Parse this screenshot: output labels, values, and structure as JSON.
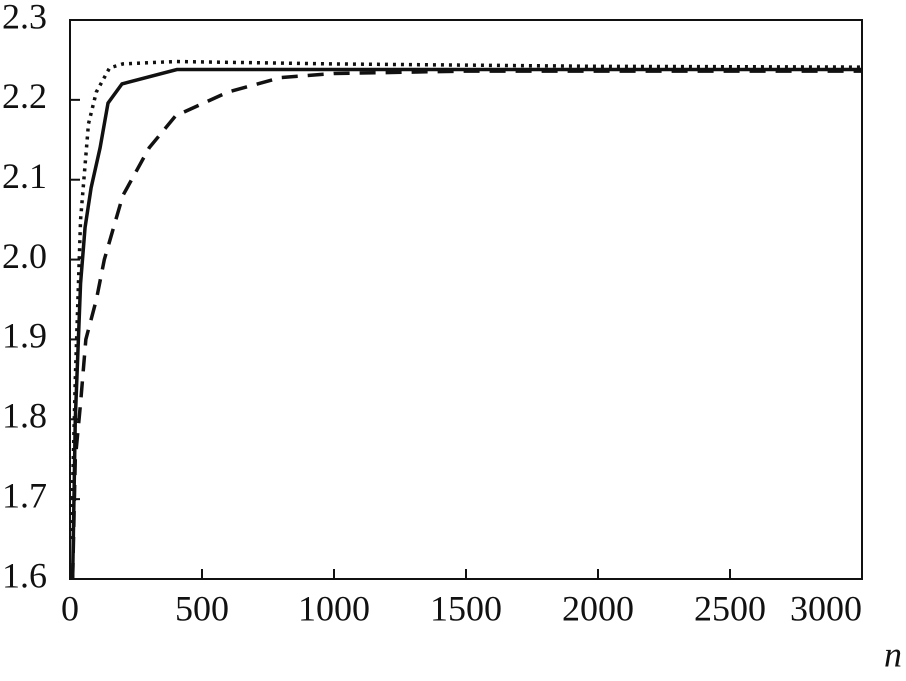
{
  "chart_data": {
    "type": "line",
    "x_label": "n",
    "xlim": [
      0,
      3000
    ],
    "xticks": [
      0,
      500,
      1000,
      1500,
      2000,
      2500,
      3000
    ],
    "ylim": [
      1.6,
      2.3
    ],
    "yticks": [
      1.6,
      1.7,
      1.8,
      1.9,
      {
        "value": 2,
        "label": "2.0"
      },
      2.1,
      2.2,
      2.3
    ],
    "series": [
      {
        "color": "#111111",
        "dash": "solid",
        "x": [
          10,
          20,
          40,
          57,
          80,
          114,
          144,
          197,
          405,
          1000,
          2000,
          3000
        ],
        "values": [
          1.6,
          1.8,
          1.97,
          2.04,
          2.09,
          2.14,
          2.196,
          2.22,
          2.238,
          2.238,
          2.238,
          2.238
        ]
      },
      {
        "color": "#111111",
        "dash": "dotted",
        "x": [
          5,
          20,
          40,
          70,
          100,
          150,
          200,
          400,
          1000,
          2000,
          3000
        ],
        "values": [
          1.65,
          1.85,
          2.05,
          2.17,
          2.21,
          2.24,
          2.245,
          2.248,
          2.245,
          2.242,
          2.241
        ]
      },
      {
        "color": "#111111",
        "dash": "dashed",
        "x": [
          10,
          20,
          40,
          60,
          100,
          130,
          200,
          300,
          400,
          600,
          800,
          1000,
          1500,
          2000,
          3000
        ],
        "values": [
          1.6,
          1.75,
          1.82,
          1.9,
          1.95,
          2.0,
          2.08,
          2.14,
          2.18,
          2.21,
          2.228,
          2.233,
          2.236,
          2.236,
          2.236
        ]
      }
    ]
  }
}
